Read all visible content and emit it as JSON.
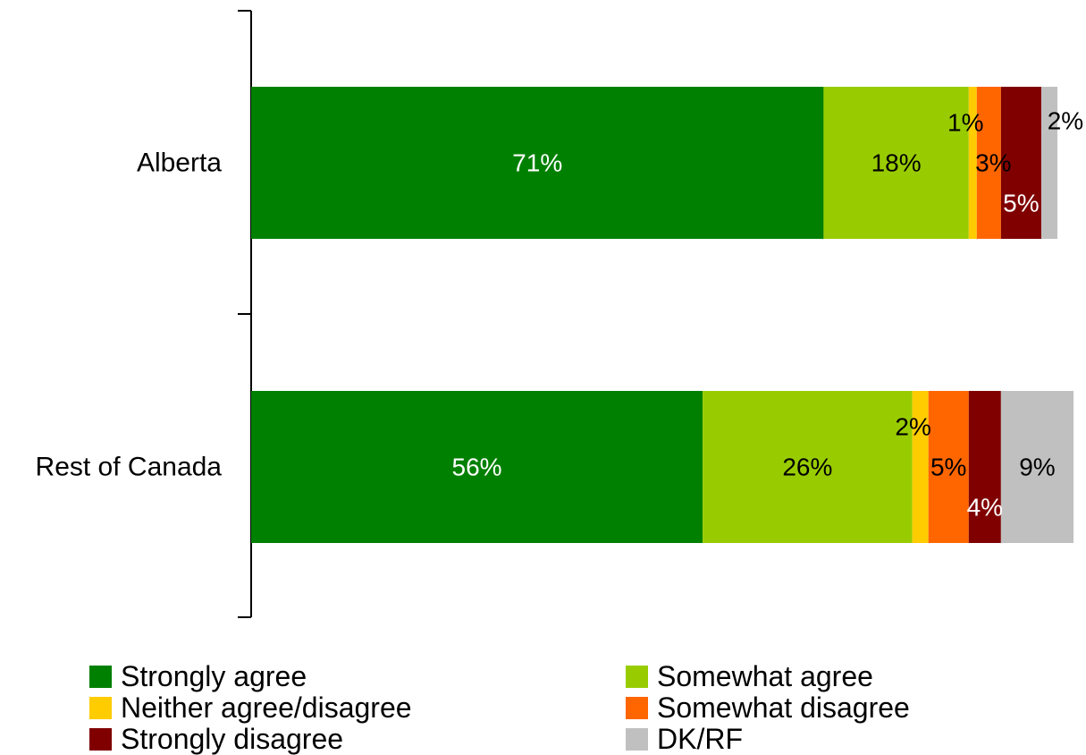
{
  "chart_data": {
    "type": "bar",
    "orientation": "horizontal",
    "stacked": true,
    "categories": [
      "Alberta",
      "Rest of Canada"
    ],
    "series": [
      {
        "name": "Strongly agree",
        "values": [
          71,
          56
        ],
        "color": "#008000",
        "label_color": "#ffffff"
      },
      {
        "name": "Somewhat agree",
        "values": [
          18,
          26
        ],
        "color": "#99cc00",
        "label_color": "#000000"
      },
      {
        "name": "Neither agree/disagree",
        "values": [
          1,
          2
        ],
        "color": "#ffcc00",
        "label_color": "#000000"
      },
      {
        "name": "Somewhat disagree",
        "values": [
          3,
          5
        ],
        "color": "#ff6600",
        "label_color": "#000000"
      },
      {
        "name": "Strongly disagree",
        "values": [
          5,
          4
        ],
        "color": "#800000",
        "label_color": "#ffffff"
      },
      {
        "name": "DK/RF",
        "values": [
          2,
          9
        ],
        "color": "#c0c0c0",
        "label_color": "#000000"
      }
    ],
    "data_labels": [
      [
        "71%",
        "18%",
        "1%",
        "3%",
        "5%",
        "2%"
      ],
      [
        "56%",
        "26%",
        "2%",
        "5%",
        "4%",
        "9%"
      ]
    ],
    "xlim": [
      0,
      100
    ],
    "grid": false,
    "legend_position": "bottom"
  }
}
